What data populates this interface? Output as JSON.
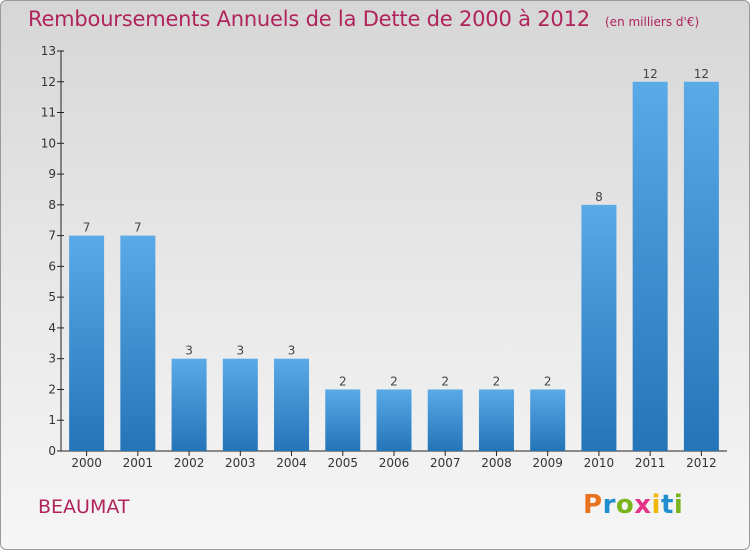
{
  "chart_data": {
    "type": "bar",
    "title": "Remboursements Annuels de la Dette de 2000 à 2012",
    "subtitle": "(en milliers d'€)",
    "categories": [
      "2000",
      "2001",
      "2002",
      "2003",
      "2004",
      "2005",
      "2006",
      "2007",
      "2008",
      "2009",
      "2010",
      "2011",
      "2012"
    ],
    "values": [
      7,
      7,
      3,
      3,
      3,
      2,
      2,
      2,
      2,
      2,
      8,
      12,
      12
    ],
    "data_labels": [
      "7",
      "7",
      "3",
      "3",
      "3",
      "2",
      "2",
      "2",
      "2",
      "2",
      "8",
      "12",
      "12"
    ],
    "ylim": [
      0,
      13
    ],
    "yticks": [
      0,
      1,
      2,
      3,
      4,
      5,
      6,
      7,
      8,
      9,
      10,
      11,
      12,
      13
    ],
    "xlabel": "",
    "ylabel": "",
    "grid": false,
    "bar_color": "#3a8fd6",
    "title_color": "#b0245c"
  },
  "footer": {
    "commune": "BEAUMAT",
    "brand": [
      "P",
      "r",
      "o",
      "x",
      "i",
      "t",
      "i"
    ],
    "brand_colors": [
      "#e8731e",
      "#1f8fd0",
      "#7ab51d",
      "#e5338b",
      "#f2b705",
      "#1f8fd0",
      "#7ab51d"
    ]
  }
}
